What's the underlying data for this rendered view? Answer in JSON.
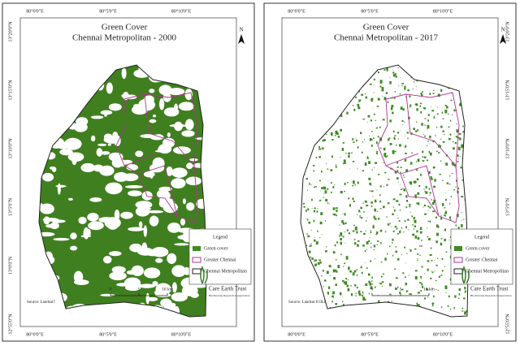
{
  "panels": [
    {
      "title": "Green Cover",
      "subtitle": "Chennai Metropolitan - 2000",
      "north": "N",
      "lon_labels": [
        "80°0'0\"E",
        "80°5'0\"E",
        "80°10'0\"E"
      ],
      "lat_labels": [
        "13°20'0\"N",
        "13°15'0\"N",
        "13°10'0\"N",
        "13°5'0\"N",
        "13°0'0\"N",
        "12°55'0\"N"
      ],
      "lat_side": "left",
      "legend": {
        "title": "Legend",
        "items": [
          "Green cover",
          "Greater Chennai",
          "Chennai Metropolitan"
        ]
      },
      "scale": [
        "0",
        "5",
        "10 km"
      ],
      "source": "Source: Landsat7",
      "logo": {
        "name": "Care Earth Trust",
        "tagline": "Biodiversity Research Conservation"
      }
    },
    {
      "title": "Green Cover",
      "subtitle": "Chennai Metropolitan - 2017",
      "north": "N",
      "lon_labels": [
        "80°0'0\"E",
        "80°5'0\"E",
        "80°10'0\"E"
      ],
      "lat_labels": [
        "13°20'0\"N",
        "13°15'0\"N",
        "13°10'0\"N",
        "13°5'0\"N",
        "13°0'0\"N",
        "12°55'0\"N"
      ],
      "lat_side": "right",
      "legend": {
        "title": "Legend",
        "items": [
          "Green cover",
          "Greater Chennai",
          "Chennai Metropolitan"
        ]
      },
      "scale": [
        "0",
        "5",
        "10 km"
      ],
      "source": "Source: Landsat 8 OLI",
      "logo": {
        "name": "Care Earth Trust",
        "tagline": "Biodiversity Research Conservation"
      }
    }
  ]
}
